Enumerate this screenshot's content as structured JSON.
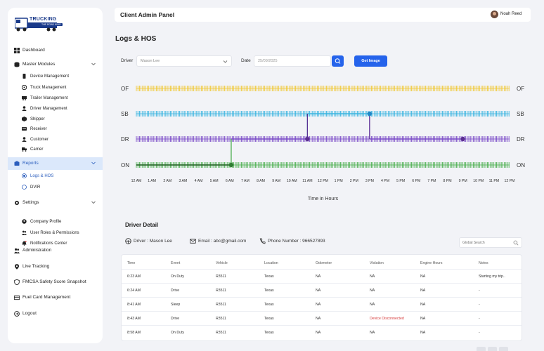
{
  "app": {
    "logo_text": "TRUCKING",
    "logo_sub": "THE ROAD KING",
    "header_title": "Client Admin Panel",
    "user_name": "Noah Reed"
  },
  "sidebar": {
    "items": [
      {
        "label": "Dashboard",
        "icon": "dashboard-icon"
      },
      {
        "label": "Master Modules",
        "icon": "modules-icon"
      },
      {
        "label": "Reports",
        "icon": "reports-icon"
      },
      {
        "label": "Settings",
        "icon": "gear-icon"
      },
      {
        "label": "Administration",
        "icon": "users-icon"
      },
      {
        "label": "Live Tracking",
        "icon": "location-pin-icon"
      },
      {
        "label": "FMCSA Safety Score Snapshot",
        "icon": "shield-icon"
      },
      {
        "label": "Fuel Card Management",
        "icon": "card-icon"
      },
      {
        "label": "Logout",
        "icon": "logout-icon"
      }
    ],
    "master_sub": [
      {
        "label": "Device Management",
        "icon": "device-icon"
      },
      {
        "label": "Truck Management",
        "icon": "truck-icon"
      },
      {
        "label": "Trailer Management",
        "icon": "trailer-icon"
      },
      {
        "label": "Driver Management",
        "icon": "driver-icon"
      },
      {
        "label": "Shipper",
        "icon": "box-icon"
      },
      {
        "label": "Receiver",
        "icon": "receiver-icon"
      },
      {
        "label": "Customer",
        "icon": "customer-icon"
      },
      {
        "label": "Carrier",
        "icon": "carrier-icon"
      }
    ],
    "reports_sub": [
      {
        "label": "Logs & HOS"
      },
      {
        "label": "DVIR"
      }
    ],
    "settings_sub": [
      {
        "label": "Company Profile",
        "icon": "company-icon"
      },
      {
        "label": "User Roles & Permissions",
        "icon": "roles-icon"
      },
      {
        "label": "Notifications Center",
        "icon": "bell-icon"
      }
    ]
  },
  "page": {
    "title": "Logs & HOS",
    "driver_label": "Driver",
    "driver_value": "Mason Lee",
    "date_label": "Date",
    "date_value": "25/09/2025",
    "get_image_label": "Get Image"
  },
  "chart_data": {
    "type": "line",
    "xlabel": "Time in Hours",
    "status_rows": [
      "OF",
      "SB",
      "DR",
      "ON"
    ],
    "row_colors": {
      "OF": "#f0c93a",
      "SB": "#3bb5e0",
      "DR": "#7c4dc8",
      "ON": "#4caf50"
    },
    "x_ticks": [
      "12 AM",
      "1 AM",
      "2 AM",
      "3 AM",
      "4 AM",
      "5 AM",
      "6 AM",
      "7 AM",
      "8 AM",
      "9 AM",
      "10 AM",
      "11 AM",
      "12 PM",
      "1 PM",
      "2 PM",
      "3 PM",
      "4 PM",
      "5 PM",
      "6 PM",
      "7 PM",
      "8 PM",
      "9 PM",
      "10 PM",
      "11 PM",
      "12 PM"
    ],
    "xlim": [
      0,
      24
    ],
    "segments": [
      {
        "status": "ON",
        "start": 0,
        "end": 6.1
      },
      {
        "status": "DR",
        "start": 6.1,
        "end": 11.0
      },
      {
        "status": "SB",
        "start": 11.0,
        "end": 15.0
      },
      {
        "status": "DR",
        "start": 15.0,
        "end": 21.0
      }
    ],
    "points": [
      {
        "status": "ON",
        "x": 6.1
      },
      {
        "status": "DR",
        "x": 11.0
      },
      {
        "status": "SB",
        "x": 15.0
      },
      {
        "status": "DR",
        "x": 21.0
      }
    ]
  },
  "detail": {
    "title": "Driver Detail",
    "driver_text": "Driver : Mason Lee",
    "email_text": "Email : abc@gmail.com",
    "phone_text": "Phone Number : 966527893",
    "search_placeholder": "Global Search",
    "columns": [
      "Time",
      "Event",
      "Vehicle",
      "Location",
      "Odometer",
      "Violation",
      "Engine Hours",
      "Notes"
    ],
    "rows": [
      [
        "6:23 AM",
        "On Duty",
        "R3511",
        "Texas",
        "NA",
        "NA",
        "NA",
        "Starting my trip.."
      ],
      [
        "6:24 AM",
        "Drive",
        "R3511",
        "Texas",
        "NA",
        "NA",
        "NA",
        "-"
      ],
      [
        "8:41 AM",
        "Sleep",
        "R3511",
        "Texas",
        "NA",
        "NA",
        "NA",
        "-"
      ],
      [
        "8:43 AM",
        "Drive",
        "R3511",
        "Texas",
        "NA",
        "Device Disconnected",
        "NA",
        "-"
      ],
      [
        "8:58 AM",
        "On Duty",
        "R3511",
        "Texas",
        "NA",
        "NA",
        "NA",
        "-"
      ]
    ]
  }
}
